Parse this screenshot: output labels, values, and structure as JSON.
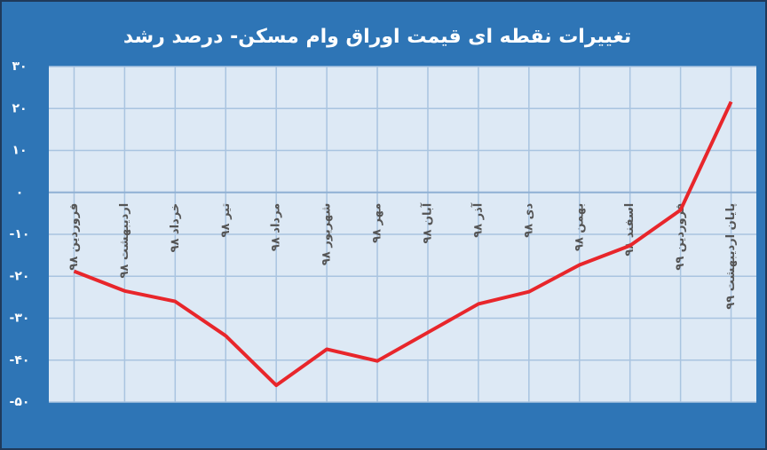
{
  "chart_data": {
    "type": "line",
    "title": "تغییرات نقطه ای قیمت اوراق وام مسکن- درصد رشد",
    "categories": [
      "فروردین ۹۸",
      "اردیبهشت ۹۸",
      "خرداد ۹۸",
      "تیر ۹۸",
      "مرداد ۹۸",
      "شهریور ۹۸",
      "مهر ۹۸",
      "آبان ۹۸",
      "آذر ۹۸",
      "دی ۹۸",
      "بهمن ۹۸",
      "اسفند ۹۸",
      "فروردین ۹۹",
      "پایان اردیبهشت ۹۹"
    ],
    "values": [
      -18.8,
      -23.5,
      -26,
      -34.2,
      -46,
      -37.4,
      -40.2,
      -33.4,
      -26.6,
      -23.7,
      -17.3,
      -12.7,
      -4.2,
      21.6
    ],
    "color": "#e8262b",
    "ylim": [
      -50,
      30
    ],
    "yticks": [
      {
        "value": 30,
        "label": "۳۰"
      },
      {
        "value": 20,
        "label": "۲۰"
      },
      {
        "value": 10,
        "label": "۱۰"
      },
      {
        "value": 0,
        "label": "۰"
      },
      {
        "value": -10,
        "label": "-۱۰"
      },
      {
        "value": -20,
        "label": "-۲۰"
      },
      {
        "value": -30,
        "label": "-۳۰"
      },
      {
        "value": -40,
        "label": "-۴۰"
      },
      {
        "value": -50,
        "label": "-۵۰"
      }
    ],
    "grid": true
  }
}
